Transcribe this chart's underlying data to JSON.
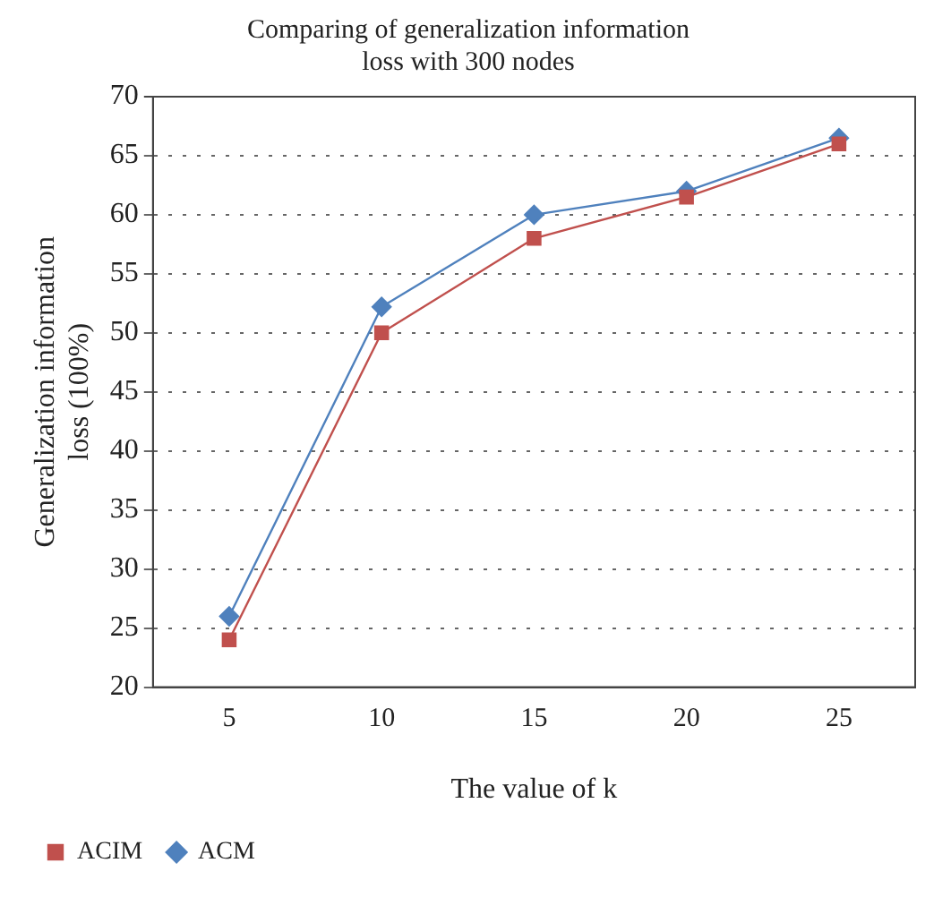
{
  "chart_data": {
    "type": "line",
    "title": "Comparing of generalization information loss with 300 nodes",
    "xlabel": "The value of k",
    "ylabel": "Generalization information loss (100%)",
    "categories": [
      "5",
      "10",
      "15",
      "20",
      "25"
    ],
    "series": [
      {
        "name": "ACM",
        "color": "#4f81bd",
        "marker": "diamond",
        "values": [
          26,
          52.2,
          60,
          62,
          66.5
        ]
      },
      {
        "name": "ACIM",
        "color": "#c0504d",
        "marker": "square",
        "values": [
          24,
          50,
          58,
          61.5,
          66
        ]
      }
    ],
    "ylim": [
      20,
      70
    ],
    "yticks": [
      20,
      25,
      30,
      35,
      40,
      45,
      50,
      55,
      60,
      65,
      70
    ],
    "grid": "y",
    "legend": "bottom",
    "line_style": "solid"
  }
}
